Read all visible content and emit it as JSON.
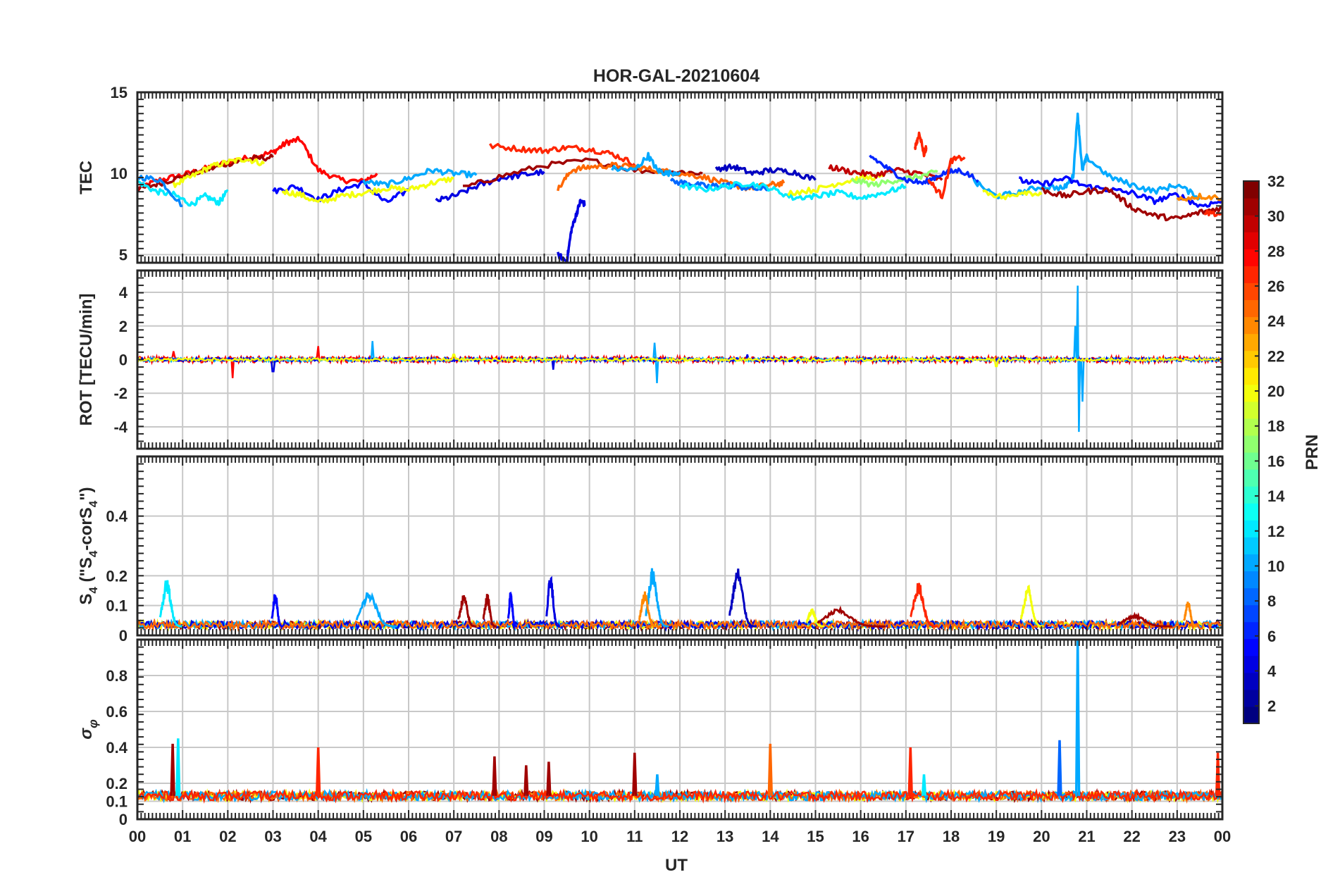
{
  "chart_data": {
    "type": "line",
    "title": "HOR-GAL-20210604",
    "xlabel": "UT",
    "x_tick_labels": [
      "00",
      "01",
      "02",
      "03",
      "04",
      "05",
      "06",
      "07",
      "08",
      "09",
      "10",
      "11",
      "12",
      "13",
      "14",
      "15",
      "16",
      "17",
      "18",
      "19",
      "20",
      "21",
      "22",
      "23",
      "00"
    ],
    "xlim": [
      0,
      24
    ],
    "grid": true,
    "colorbar": {
      "label": "PRN",
      "range": [
        1,
        32
      ],
      "tick_labels": [
        "2",
        "4",
        "6",
        "8",
        "10",
        "12",
        "14",
        "16",
        "18",
        "20",
        "22",
        "24",
        "26",
        "28",
        "30",
        "32"
      ],
      "colormap": "jet",
      "placement": "right"
    },
    "panels": [
      {
        "id": "tec",
        "ylabel": "TEC",
        "ylim": [
          4.5,
          15
        ],
        "y_ticks": [
          5,
          10,
          15
        ],
        "series": [
          {
            "prn": 28,
            "x": [
              0,
              0.5,
              1,
              1.5,
              2,
              2.5,
              3,
              3.3,
              3.6,
              4,
              4.5,
              5,
              5.3
            ],
            "y": [
              9.1,
              9.6,
              9.9,
              10.3,
              10.7,
              11.0,
              11.3,
              11.9,
              12.1,
              10.2,
              9.6,
              9.5,
              10.0
            ]
          },
          {
            "prn": 31,
            "x": [
              0,
              0.5,
              1,
              1.5,
              2,
              2.5,
              3
            ],
            "y": [
              9.0,
              9.4,
              9.8,
              10.2,
              10.6,
              10.9,
              11.0
            ]
          },
          {
            "prn": 20,
            "x": [
              0.8,
              1.2,
              1.6,
              2.0,
              2.4,
              2.8
            ],
            "y": [
              9.3,
              9.8,
              10.4,
              10.7,
              10.9,
              10.6
            ]
          },
          {
            "prn": 12,
            "x": [
              0,
              0.4,
              0.8,
              1.2,
              1.5,
              1.8,
              2.0
            ],
            "y": [
              9.5,
              8.9,
              8.7,
              8.1,
              8.6,
              8.2,
              8.9
            ]
          },
          {
            "prn": 9,
            "x": [
              0,
              0.5,
              1.0
            ],
            "y": [
              9.8,
              9.6,
              8.0
            ]
          },
          {
            "prn": 5,
            "x": [
              3.0,
              3.5,
              4.0,
              4.5,
              5.0,
              5.5,
              6.0
            ],
            "y": [
              8.9,
              9.2,
              8.4,
              9.0,
              9.4,
              8.2,
              9.0
            ]
          },
          {
            "prn": 20,
            "x": [
              3.2,
              3.6,
              4.0,
              4.5,
              5.0,
              5.5,
              6.0,
              6.5,
              7.0
            ],
            "y": [
              8.9,
              8.7,
              8.2,
              8.6,
              8.8,
              9.1,
              9.0,
              9.4,
              9.7
            ]
          },
          {
            "prn": 10,
            "x": [
              5.0,
              5.5,
              6.0,
              6.5,
              7.0,
              7.5
            ],
            "y": [
              9.5,
              9.3,
              9.7,
              10.2,
              10.0,
              9.9
            ]
          },
          {
            "prn": 4,
            "x": [
              6.6,
              7.0,
              7.5,
              8.0,
              8.5,
              9.0
            ],
            "y": [
              8.3,
              8.6,
              9.2,
              9.7,
              9.9,
              10.1
            ]
          },
          {
            "prn": 31,
            "x": [
              7.2,
              8.0,
              9.0,
              10.0,
              11.0,
              12.0,
              12.5
            ],
            "y": [
              9.1,
              9.8,
              10.5,
              10.8,
              10.2,
              10.1,
              10.0
            ]
          },
          {
            "prn": 27,
            "x": [
              7.8,
              8.5,
              9.0,
              9.5,
              10.0,
              10.5,
              11.0
            ],
            "y": [
              11.7,
              11.5,
              11.4,
              11.6,
              11.5,
              11.2,
              10.6
            ]
          },
          {
            "prn": 25,
            "x": [
              9.3,
              9.6,
              10.0,
              10.5,
              11.0,
              11.5,
              12.0,
              12.5,
              13.0,
              13.5,
              14.0,
              14.3
            ],
            "y": [
              9.0,
              10.2,
              10.4,
              10.5,
              10.4,
              10.2,
              10.0,
              9.8,
              9.4,
              9.1,
              9.3,
              9.4
            ]
          },
          {
            "prn": 4,
            "x": [
              9.3,
              9.5,
              9.6,
              9.7,
              9.8,
              9.9
            ],
            "y": [
              5.0,
              4.6,
              6.5,
              7.4,
              8.3,
              8.1
            ]
          },
          {
            "prn": 10,
            "x": [
              10.5,
              11.0,
              11.3,
              11.5,
              11.7,
              12.0
            ],
            "y": [
              10.3,
              10.2,
              11.1,
              10.2,
              10.0,
              10.1
            ]
          },
          {
            "prn": 8,
            "x": [
              11.8,
              12.2,
              12.6,
              13.0,
              13.5,
              14.0
            ],
            "y": [
              9.5,
              9.4,
              9.2,
              9.3,
              9.1,
              9.0
            ]
          },
          {
            "prn": 12,
            "x": [
              12.0,
              12.5,
              13.0,
              13.5,
              14.0,
              14.5,
              15.0
            ],
            "y": [
              9.3,
              9.0,
              9.2,
              9.4,
              9.1,
              8.5,
              8.6
            ]
          },
          {
            "prn": 3,
            "x": [
              12.8,
              13.2,
              13.6,
              14.0,
              14.5,
              15.0
            ],
            "y": [
              10.3,
              10.4,
              10.0,
              10.2,
              10.1,
              9.6
            ]
          },
          {
            "prn": 20,
            "x": [
              14.4,
              15.0,
              15.5,
              16.0,
              16.5
            ],
            "y": [
              8.8,
              9.0,
              9.4,
              9.7,
              9.8
            ]
          },
          {
            "prn": 12,
            "x": [
              15.0,
              15.5,
              16.0,
              16.5,
              17.0
            ],
            "y": [
              8.6,
              8.8,
              8.5,
              8.8,
              9.2
            ]
          },
          {
            "prn": 30,
            "x": [
              15.3,
              15.8,
              16.3,
              16.8,
              17.3,
              17.8
            ],
            "y": [
              10.4,
              10.1,
              9.9,
              10.2,
              10.0,
              9.6
            ]
          },
          {
            "prn": 17,
            "x": [
              15.8,
              16.3,
              16.8,
              17.3,
              17.7
            ],
            "y": [
              9.6,
              9.3,
              9.6,
              9.8,
              10.1
            ]
          },
          {
            "prn": 6,
            "x": [
              16.2,
              16.6,
              17.0,
              17.4,
              17.8,
              18.2,
              18.6
            ],
            "y": [
              11.1,
              10.3,
              9.6,
              9.4,
              10.0,
              10.2,
              9.6
            ]
          },
          {
            "prn": 27,
            "x": [
              17.2,
              17.3,
              17.4,
              17.45
            ],
            "y": [
              11.5,
              12.5,
              11.2,
              11.6
            ]
          },
          {
            "prn": 27,
            "x": [
              17.5,
              17.8,
              18.0,
              18.3
            ],
            "y": [
              9.6,
              8.6,
              10.8,
              11.0
            ]
          },
          {
            "prn": 10,
            "x": [
              18.5,
              19.0,
              19.5,
              20.0,
              20.5,
              20.7,
              20.8,
              20.9,
              21.0,
              21.5,
              22.0,
              22.5,
              23.0,
              23.5
            ],
            "y": [
              9.5,
              8.6,
              8.8,
              9.2,
              9.1,
              9.8,
              13.7,
              10.2,
              11.0,
              9.8,
              9.3,
              8.9,
              9.3,
              8.5
            ]
          },
          {
            "prn": 20,
            "x": [
              18.7,
              19.2,
              19.6,
              20.0
            ],
            "y": [
              8.9,
              8.5,
              8.9,
              8.7
            ]
          },
          {
            "prn": 5,
            "x": [
              19.5,
              20.0,
              20.5,
              21.0,
              21.5,
              22.0,
              22.5,
              23.0,
              23.5,
              24.0
            ],
            "y": [
              9.6,
              9.3,
              9.7,
              9.2,
              9.0,
              8.8,
              8.3,
              8.7,
              8.0,
              8.3
            ]
          },
          {
            "prn": 31,
            "x": [
              20.0,
              20.5,
              21.0,
              21.5,
              22.0,
              22.5,
              23.0,
              23.5,
              24.0
            ],
            "y": [
              9.0,
              8.6,
              8.9,
              9.0,
              7.9,
              7.4,
              7.2,
              7.6,
              7.9
            ]
          },
          {
            "prn": 24,
            "x": [
              23.0,
              23.5,
              24.0
            ],
            "y": [
              8.4,
              8.6,
              8.5
            ]
          },
          {
            "prn": 27,
            "x": [
              23.6,
              24.0
            ],
            "y": [
              7.6,
              7.5
            ]
          }
        ]
      },
      {
        "id": "rot",
        "ylabel": "ROT [TECU/min]",
        "ylim": [
          -5.3,
          5.3
        ],
        "y_ticks": [
          -4,
          -2,
          0,
          2,
          4
        ],
        "series": [
          {
            "prn": 28,
            "spikes": [
              [
                2.1,
                -1.1
              ],
              [
                4.0,
                0.8
              ],
              [
                0.8,
                0.5
              ]
            ],
            "x": [
              0,
              24
            ],
            "noise": 0.35
          },
          {
            "prn": 10,
            "spikes": [
              [
                20.8,
                4.4
              ],
              [
                20.82,
                -4.3
              ],
              [
                20.75,
                2.0
              ],
              [
                20.9,
                -2.5
              ],
              [
                11.5,
                -1.4
              ],
              [
                11.45,
                1.0
              ],
              [
                5.2,
                1.1
              ]
            ],
            "x": [
              0,
              24
            ],
            "noise": 0.2
          },
          {
            "prn": 4,
            "spikes": [
              [
                9.2,
                -0.6
              ],
              [
                3.0,
                -0.7
              ],
              [
                13.5,
                0.3
              ]
            ],
            "x": [
              0,
              24
            ],
            "noise": 0.2
          },
          {
            "prn": 20,
            "spikes": [
              [
                19.0,
                -0.4
              ],
              [
                7.0,
                0.3
              ]
            ],
            "x": [
              0,
              24
            ],
            "noise": 0.15
          }
        ]
      },
      {
        "id": "s4",
        "ylabel": "S4 (\"S4-corS4\")",
        "ylim": [
          0,
          0.6
        ],
        "y_ticks": [
          0,
          0.1,
          0.2,
          0.4
        ],
        "y_tick_labels": [
          "0",
          "0.1",
          "0.2",
          "0.4"
        ],
        "base_level": 0.03,
        "bursts": [
          {
            "prn": 12,
            "x": 0.75,
            "peak": 0.19,
            "width": 0.5
          },
          {
            "prn": 5,
            "x": 3.1,
            "peak": 0.15,
            "width": 0.25
          },
          {
            "prn": 10,
            "x": 5.3,
            "peak": 0.15,
            "width": 0.9
          },
          {
            "prn": 31,
            "x": 7.3,
            "peak": 0.14,
            "width": 0.4
          },
          {
            "prn": 31,
            "x": 7.8,
            "peak": 0.14,
            "width": 0.3
          },
          {
            "prn": 5,
            "x": 8.3,
            "peak": 0.15,
            "width": 0.2
          },
          {
            "prn": 4,
            "x": 9.2,
            "peak": 0.21,
            "width": 0.3
          },
          {
            "prn": 10,
            "x": 11.5,
            "peak": 0.23,
            "width": 0.5
          },
          {
            "prn": 24,
            "x": 11.3,
            "peak": 0.15,
            "width": 0.4
          },
          {
            "prn": 3,
            "x": 13.4,
            "peak": 0.23,
            "width": 0.6
          },
          {
            "prn": 20,
            "x": 15.0,
            "peak": 0.09,
            "width": 0.4
          },
          {
            "prn": 31,
            "x": 15.8,
            "peak": 0.09,
            "width": 1.5
          },
          {
            "prn": 27,
            "x": 17.4,
            "peak": 0.18,
            "width": 0.6
          },
          {
            "prn": 20,
            "x": 19.8,
            "peak": 0.17,
            "width": 0.5
          },
          {
            "prn": 24,
            "x": 23.3,
            "peak": 0.12,
            "width": 0.3
          },
          {
            "prn": 31,
            "x": 22.3,
            "peak": 0.07,
            "width": 1.2
          }
        ]
      },
      {
        "id": "sigma_phi",
        "ylabel": "σ φ",
        "ylim": [
          0,
          1
        ],
        "y_ticks": [
          0,
          0.1,
          0.2,
          0.4,
          0.6,
          0.8
        ],
        "y_tick_labels": [
          "0",
          "0.1",
          "0.2",
          "0.4",
          "0.6",
          "0.8"
        ],
        "base_level": 0.13,
        "spikes": [
          {
            "prn": 31,
            "x": 0.78,
            "peak": 0.42
          },
          {
            "prn": 12,
            "x": 0.9,
            "peak": 0.45
          },
          {
            "prn": 27,
            "x": 4.0,
            "peak": 0.4
          },
          {
            "prn": 31,
            "x": 7.9,
            "peak": 0.35
          },
          {
            "prn": 31,
            "x": 8.6,
            "peak": 0.3
          },
          {
            "prn": 31,
            "x": 9.1,
            "peak": 0.32
          },
          {
            "prn": 31,
            "x": 11.0,
            "peak": 0.37
          },
          {
            "prn": 10,
            "x": 11.5,
            "peak": 0.25
          },
          {
            "prn": 25,
            "x": 14.0,
            "peak": 0.42
          },
          {
            "prn": 27,
            "x": 17.1,
            "peak": 0.4
          },
          {
            "prn": 12,
            "x": 17.4,
            "peak": 0.25
          },
          {
            "prn": 8,
            "x": 20.4,
            "peak": 0.44
          },
          {
            "prn": 10,
            "x": 20.8,
            "peak": 1.0
          },
          {
            "prn": 27,
            "x": 23.9,
            "peak": 0.37
          }
        ]
      }
    ]
  }
}
